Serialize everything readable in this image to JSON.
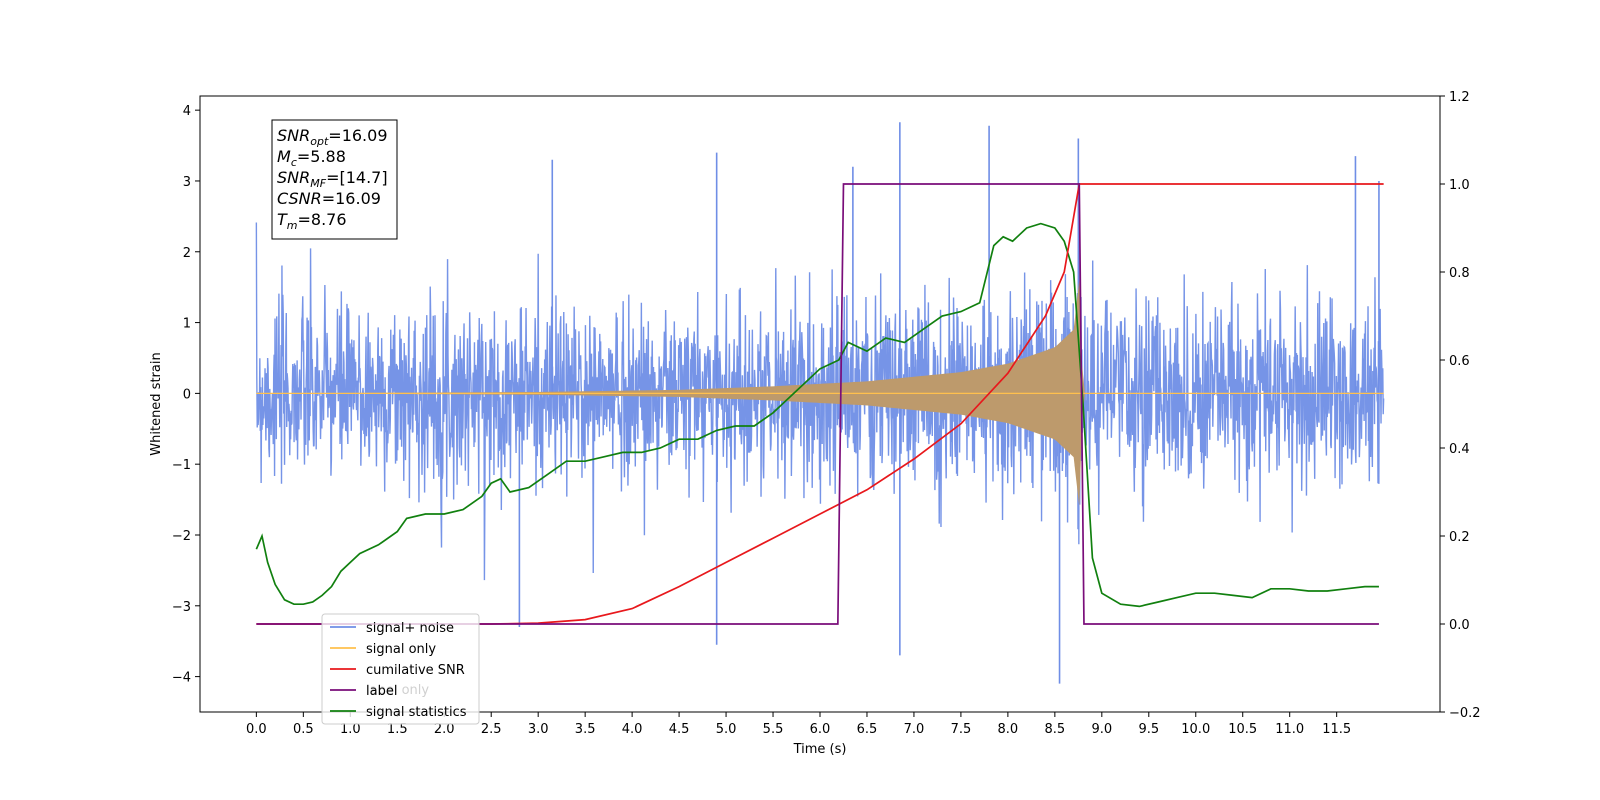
{
  "chart_data": {
    "type": "line",
    "title": "",
    "xlabel": "Time (s)",
    "ylabel": "Whitened strain",
    "xlim": [
      -0.6,
      12.6
    ],
    "ylim_left": [
      -4.5,
      4.2
    ],
    "ylim_right": [
      -0.2,
      1.2
    ],
    "x_ticks": [
      0.0,
      0.5,
      1.0,
      1.5,
      2.0,
      2.5,
      3.0,
      3.5,
      4.0,
      4.5,
      5.0,
      5.5,
      6.0,
      6.5,
      7.0,
      7.5,
      8.0,
      8.5,
      9.0,
      9.5,
      10.0,
      10.5,
      11.0,
      11.5
    ],
    "x_tick_labels": [
      "0.0",
      "0.5",
      "1.0",
      "1.5",
      "2.0",
      "2.5",
      "3.0",
      "3.5",
      "4.0",
      "4.5",
      "5.0",
      "5.5",
      "6.0",
      "6.5",
      "7.0",
      "7.5",
      "8.0",
      "8.5",
      "9.0",
      "9.5",
      "10.0",
      "10.5",
      "11.0",
      "11.5"
    ],
    "y_ticks_left": [
      4,
      3,
      2,
      1,
      0,
      -1,
      -2,
      -3,
      -4
    ],
    "y_tick_labels_left": [
      "4",
      "3",
      "2",
      "1",
      "0",
      "−1",
      "−2",
      "−3",
      "−4"
    ],
    "y_ticks_right": [
      1.2,
      1.0,
      0.8,
      0.6,
      0.4,
      0.2,
      0.0,
      -0.2
    ],
    "y_tick_labels_right": [
      "1.2",
      "1.0",
      "0.8",
      "0.6",
      "0.4",
      "0.2",
      "0.0",
      "−0.2"
    ],
    "grid": false,
    "legend_position": "lower-left",
    "annotation": {
      "lines": [
        {
          "main": "SNR",
          "sub": "opt",
          "rest": "=16.09"
        },
        {
          "main": "M",
          "sub": "c",
          "rest": "=5.88"
        },
        {
          "main": "SNR",
          "sub": "MF",
          "rest": "=[14.7]"
        },
        {
          "main": "CSNR",
          "sub": "",
          "rest": "=16.09"
        },
        {
          "main": "T",
          "sub": "m",
          "rest": "=8.76"
        }
      ]
    },
    "legend": [
      {
        "name": "signal+ noise",
        "color": "#6f8ee6"
      },
      {
        "name": "signal only",
        "color": "#ffc04d"
      },
      {
        "name": "cumilative SNR",
        "color": "#e8181c"
      },
      {
        "name": "label",
        "color": "#7a0d7a"
      },
      {
        "name": "signal statistics",
        "color": "#11800f"
      }
    ],
    "legend_hidden_text": "label only",
    "series": [
      {
        "name": "signal+ noise",
        "axis": "left",
        "color": "#6f8ee6",
        "x_range": [
          0.0,
          12.0
        ],
        "typical_envelope": 1.5,
        "peaks": [
          {
            "x": 2.8,
            "y": -3.3
          },
          {
            "x": 3.15,
            "y": 3.3
          },
          {
            "x": 4.9,
            "y": -3.55
          },
          {
            "x": 4.9,
            "y": 3.4
          },
          {
            "x": 6.35,
            "y": 3.2
          },
          {
            "x": 6.85,
            "y": 3.83
          },
          {
            "x": 6.85,
            "y": -3.7
          },
          {
            "x": 7.8,
            "y": 3.78
          },
          {
            "x": 8.55,
            "y": -4.1
          },
          {
            "x": 8.75,
            "y": 3.6
          },
          {
            "x": 11.7,
            "y": 3.35
          },
          {
            "x": 11.95,
            "y": 3.0
          }
        ]
      },
      {
        "name": "signal only",
        "axis": "left",
        "color": "#ffc04d",
        "merger_time": 8.76,
        "amplitude_points": [
          [
            0.0,
            0.0
          ],
          [
            3.0,
            0.02
          ],
          [
            4.5,
            0.05
          ],
          [
            5.5,
            0.1
          ],
          [
            6.5,
            0.17
          ],
          [
            7.5,
            0.3
          ],
          [
            8.0,
            0.42
          ],
          [
            8.5,
            0.65
          ],
          [
            8.7,
            0.9
          ],
          [
            8.76,
            1.6
          ],
          [
            8.8,
            0.0
          ],
          [
            12.0,
            0.0
          ]
        ]
      },
      {
        "name": "cumilative SNR",
        "axis": "right",
        "color": "#e8181c",
        "x": [
          0.0,
          2.5,
          3.0,
          3.5,
          4.0,
          4.5,
          5.0,
          5.5,
          6.0,
          6.5,
          7.0,
          7.5,
          8.0,
          8.4,
          8.6,
          8.76,
          8.77,
          12.0
        ],
        "y": [
          0.0,
          0.0,
          0.002,
          0.01,
          0.035,
          0.085,
          0.14,
          0.195,
          0.25,
          0.305,
          0.375,
          0.455,
          0.57,
          0.7,
          0.8,
          1.0,
          1.0,
          1.0
        ]
      },
      {
        "name": "label",
        "axis": "right",
        "color": "#7a0d7a",
        "x": [
          0.0,
          6.19,
          6.25,
          8.76,
          8.81,
          11.95
        ],
        "y": [
          0.0,
          0.0,
          1.0,
          1.0,
          0.0,
          0.0
        ]
      },
      {
        "name": "signal statistics",
        "axis": "right",
        "color": "#11800f",
        "x": [
          0.0,
          0.06,
          0.12,
          0.2,
          0.3,
          0.4,
          0.5,
          0.6,
          0.7,
          0.8,
          0.9,
          1.0,
          1.1,
          1.3,
          1.5,
          1.6,
          1.8,
          2.0,
          2.2,
          2.4,
          2.5,
          2.6,
          2.7,
          2.9,
          3.1,
          3.3,
          3.5,
          3.7,
          3.9,
          4.1,
          4.3,
          4.5,
          4.7,
          4.9,
          5.1,
          5.3,
          5.5,
          5.6,
          5.8,
          6.0,
          6.2,
          6.3,
          6.5,
          6.7,
          6.9,
          7.1,
          7.3,
          7.5,
          7.7,
          7.85,
          7.95,
          8.05,
          8.2,
          8.35,
          8.5,
          8.6,
          8.7,
          8.8,
          8.9,
          9.0,
          9.2,
          9.4,
          9.6,
          9.8,
          10.0,
          10.2,
          10.4,
          10.6,
          10.8,
          11.0,
          11.2,
          11.4,
          11.6,
          11.8,
          11.95
        ],
        "y": [
          0.17,
          0.2,
          0.14,
          0.09,
          0.055,
          0.045,
          0.045,
          0.05,
          0.065,
          0.085,
          0.12,
          0.14,
          0.16,
          0.18,
          0.21,
          0.24,
          0.25,
          0.25,
          0.26,
          0.29,
          0.32,
          0.33,
          0.3,
          0.31,
          0.34,
          0.37,
          0.37,
          0.38,
          0.39,
          0.39,
          0.4,
          0.42,
          0.42,
          0.44,
          0.45,
          0.45,
          0.48,
          0.5,
          0.54,
          0.58,
          0.6,
          0.64,
          0.62,
          0.65,
          0.64,
          0.67,
          0.7,
          0.71,
          0.73,
          0.86,
          0.88,
          0.87,
          0.9,
          0.91,
          0.9,
          0.87,
          0.8,
          0.5,
          0.15,
          0.07,
          0.045,
          0.04,
          0.05,
          0.06,
          0.07,
          0.07,
          0.065,
          0.06,
          0.08,
          0.08,
          0.075,
          0.075,
          0.08,
          0.085,
          0.085
        ]
      }
    ]
  }
}
